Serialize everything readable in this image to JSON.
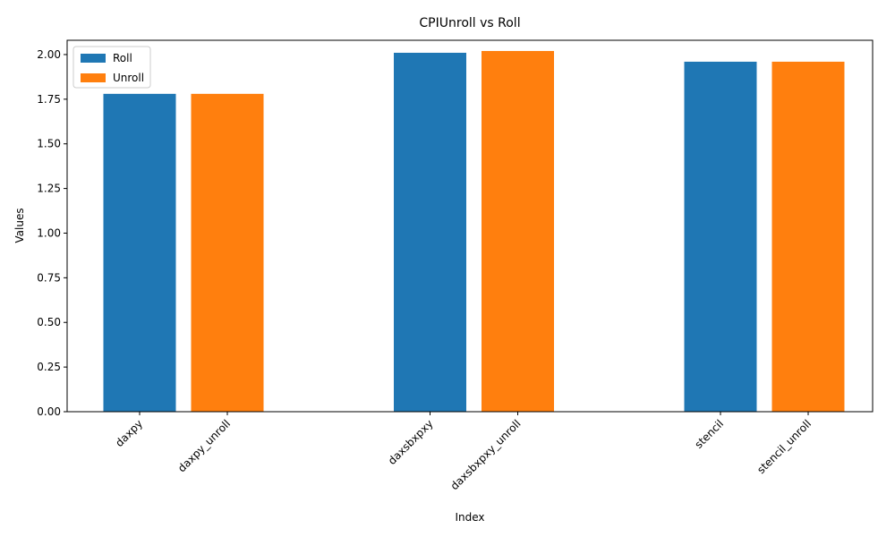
{
  "chart_data": {
    "type": "bar",
    "title": "CPIUnroll vs Roll",
    "x_label": "Index",
    "y_label": "Values",
    "categories": [
      "daxpy",
      "daxpy_unroll",
      "daxsbxpxy",
      "daxsbxpxy_unroll",
      "stencil",
      "stencil_unroll"
    ],
    "series": [
      {
        "name": "Roll",
        "color": "#1f77b4",
        "values": [
          1.78,
          null,
          2.01,
          null,
          1.96,
          null
        ]
      },
      {
        "name": "Unroll",
        "color": "#ff7f0e",
        "values": [
          null,
          1.78,
          null,
          2.02,
          null,
          1.96
        ]
      }
    ],
    "ylim": [
      0,
      2.08
    ],
    "yticks": [
      {
        "value": 0,
        "label": "0.00"
      },
      {
        "value": 0.25,
        "label": "0.25"
      },
      {
        "value": 0.5,
        "label": "0.50"
      },
      {
        "value": 0.75,
        "label": "0.75"
      },
      {
        "value": 1,
        "label": "1.00"
      },
      {
        "value": 1.25,
        "label": "1.25"
      },
      {
        "value": 1.5,
        "label": "1.50"
      },
      {
        "value": 1.75,
        "label": "1.75"
      },
      {
        "value": 2,
        "label": "2.00"
      }
    ],
    "legend": "upper left",
    "grid": false
  }
}
